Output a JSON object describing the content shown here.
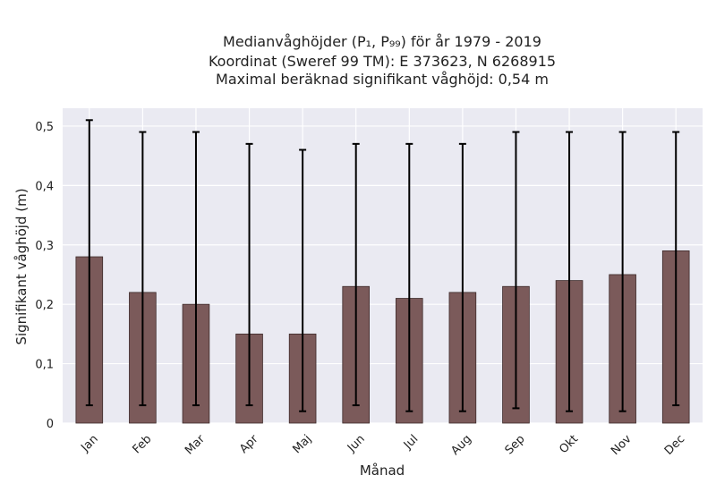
{
  "chart_data": {
    "type": "bar",
    "title_lines": [
      "Medianvåghöjder (P₁, P₉₉) för år 1979 - 2019",
      "Koordinat (Sweref 99 TM): E 373623, N 6268915",
      "Maximal beräknad signifikant våghöjd: 0,54 m"
    ],
    "xlabel": "Månad",
    "ylabel": "Signifikant våghöjd (m)",
    "categories": [
      "Jan",
      "Feb",
      "Mar",
      "Apr",
      "Maj",
      "Jun",
      "Jul",
      "Aug",
      "Sep",
      "Okt",
      "Nov",
      "Dec"
    ],
    "values": [
      0.28,
      0.22,
      0.2,
      0.15,
      0.15,
      0.23,
      0.21,
      0.22,
      0.23,
      0.24,
      0.25,
      0.29
    ],
    "error_low": [
      0.03,
      0.03,
      0.03,
      0.03,
      0.02,
      0.03,
      0.02,
      0.02,
      0.025,
      0.02,
      0.02,
      0.03
    ],
    "error_high": [
      0.51,
      0.49,
      0.49,
      0.47,
      0.46,
      0.47,
      0.47,
      0.47,
      0.49,
      0.49,
      0.49,
      0.49
    ],
    "yticks": [
      "0",
      "0,1",
      "0,2",
      "0,3",
      "0,4",
      "0,5"
    ],
    "ytick_values": [
      0,
      0.1,
      0.2,
      0.3,
      0.4,
      0.5
    ],
    "ylim": [
      0,
      0.53
    ],
    "grid": true,
    "colors": {
      "bar": "#7b5a5a",
      "bar_edge": "#3d2a2a",
      "error": "#000000",
      "plot_bg": "#eaeaf2",
      "grid": "#ffffff"
    }
  }
}
